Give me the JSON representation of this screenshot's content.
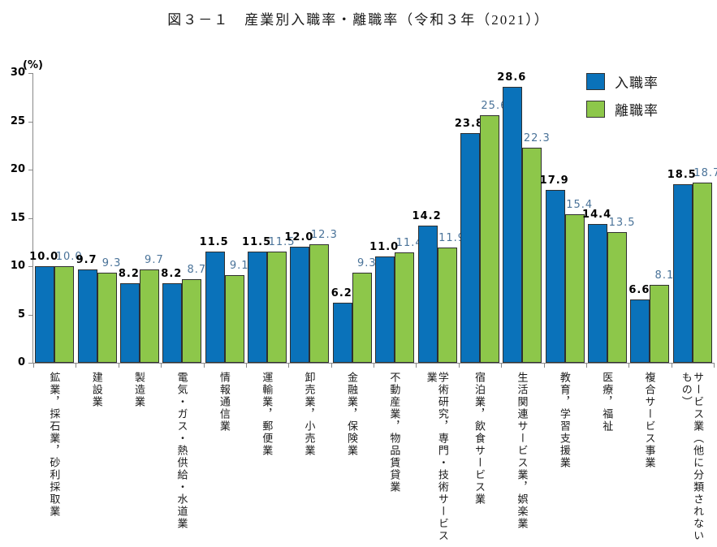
{
  "title": "図３－１　産業別入職率・離職率（令和３年（2021））",
  "y_axis": {
    "unit_label": "(%)",
    "ticks": [
      0,
      5,
      10,
      15,
      20,
      25,
      30
    ]
  },
  "legend": [
    {
      "label": "入職率",
      "color": "#0a72ba"
    },
    {
      "label": "離職率",
      "color": "#8dc74a"
    }
  ],
  "colors": {
    "hire_bar": "#0a72ba",
    "separation_bar": "#8dc74a",
    "bar_border": "#2f2f2f",
    "axis": "#888888",
    "hire_value_label": "#000000",
    "separation_value_label": "#4a7399"
  },
  "chart_data": {
    "type": "bar",
    "title": "図３－１　産業別入職率・離職率（令和３年（2021））",
    "xlabel": "",
    "ylabel": "(%)",
    "ylim": [
      0,
      30
    ],
    "grid": false,
    "legend_position": "top-right",
    "categories": [
      "鉱業，採石業，砂利採取業",
      "建設業",
      "製造業",
      "電気・ガス・熱供給・水道業",
      "情報通信業",
      "運輸業，郵便業",
      "卸売業，小売業",
      "金融業，保険業",
      "不動産業，物品賃貸業",
      "学術研究，専門・技術サービス業",
      "宿泊業，飲食サービス業",
      "生活関連サービス業，娯楽業",
      "教育，学習支援業",
      "医療，福祉",
      "複合サービス事業",
      "サービス業（他に分類されないもの）"
    ],
    "series": [
      {
        "name": "入職率",
        "color": "#0a72ba",
        "label_color": "#000000",
        "values": [
          10.0,
          9.7,
          8.2,
          8.2,
          11.5,
          11.5,
          12.0,
          6.2,
          11.0,
          14.2,
          23.8,
          28.6,
          17.9,
          14.4,
          6.6,
          18.5
        ]
      },
      {
        "name": "離職率",
        "color": "#8dc74a",
        "label_color": "#4a7399",
        "values": [
          10.0,
          9.3,
          9.7,
          8.7,
          9.1,
          11.5,
          12.3,
          9.3,
          11.4,
          11.9,
          25.6,
          22.3,
          15.4,
          13.5,
          8.1,
          18.7
        ]
      }
    ]
  }
}
